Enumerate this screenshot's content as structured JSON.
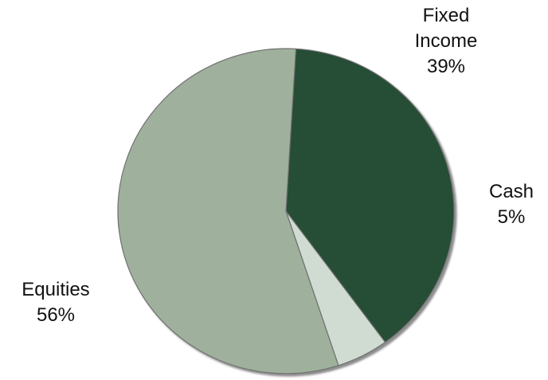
{
  "chart_data": {
    "type": "pie",
    "title": "",
    "slices": [
      {
        "label_lines": [
          "Fixed",
          "Income"
        ],
        "percent_text": "39%",
        "value": 39,
        "color": "#264d34"
      },
      {
        "label_lines": [
          "Cash"
        ],
        "percent_text": "5%",
        "value": 5,
        "color": "#d0dcd2"
      },
      {
        "label_lines": [
          "Equities"
        ],
        "percent_text": "56%",
        "value": 56,
        "color": "#9fb19d"
      }
    ],
    "legend": "none",
    "data_labels": "outside"
  }
}
